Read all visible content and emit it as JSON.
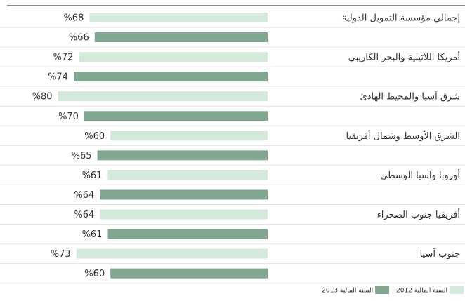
{
  "chart_data": {
    "type": "bar",
    "orientation": "horizontal",
    "categories": [
      "إجمالي مؤسسة التمويل الدولية",
      "أمريكا اللاتينية والبحر الكاريبي",
      "شرق آسيا والمحيط الهادئ",
      "الشرق الأوسط وشمال أفريقيا",
      "أوروبا وآسيا الوسطى",
      "أفريقيا جنوب الصحراء",
      "جنوب آسيا"
    ],
    "series": [
      {
        "name": "السنة المالية 2012",
        "color": "#d5e8dc",
        "values": [
          68,
          72,
          80,
          60,
          61,
          64,
          73
        ],
        "value_labels": [
          "%68",
          "%72",
          "%80",
          "%60",
          "%61",
          "%64",
          "%73"
        ]
      },
      {
        "name": "السنة المالية 2013",
        "color": "#80a68f",
        "values": [
          66,
          74,
          70,
          65,
          64,
          61,
          60
        ],
        "value_labels": [
          "%66",
          "%74",
          "%70",
          "%65",
          "%64",
          "%61",
          "%60"
        ]
      }
    ],
    "xlim": [
      0,
      100
    ]
  }
}
